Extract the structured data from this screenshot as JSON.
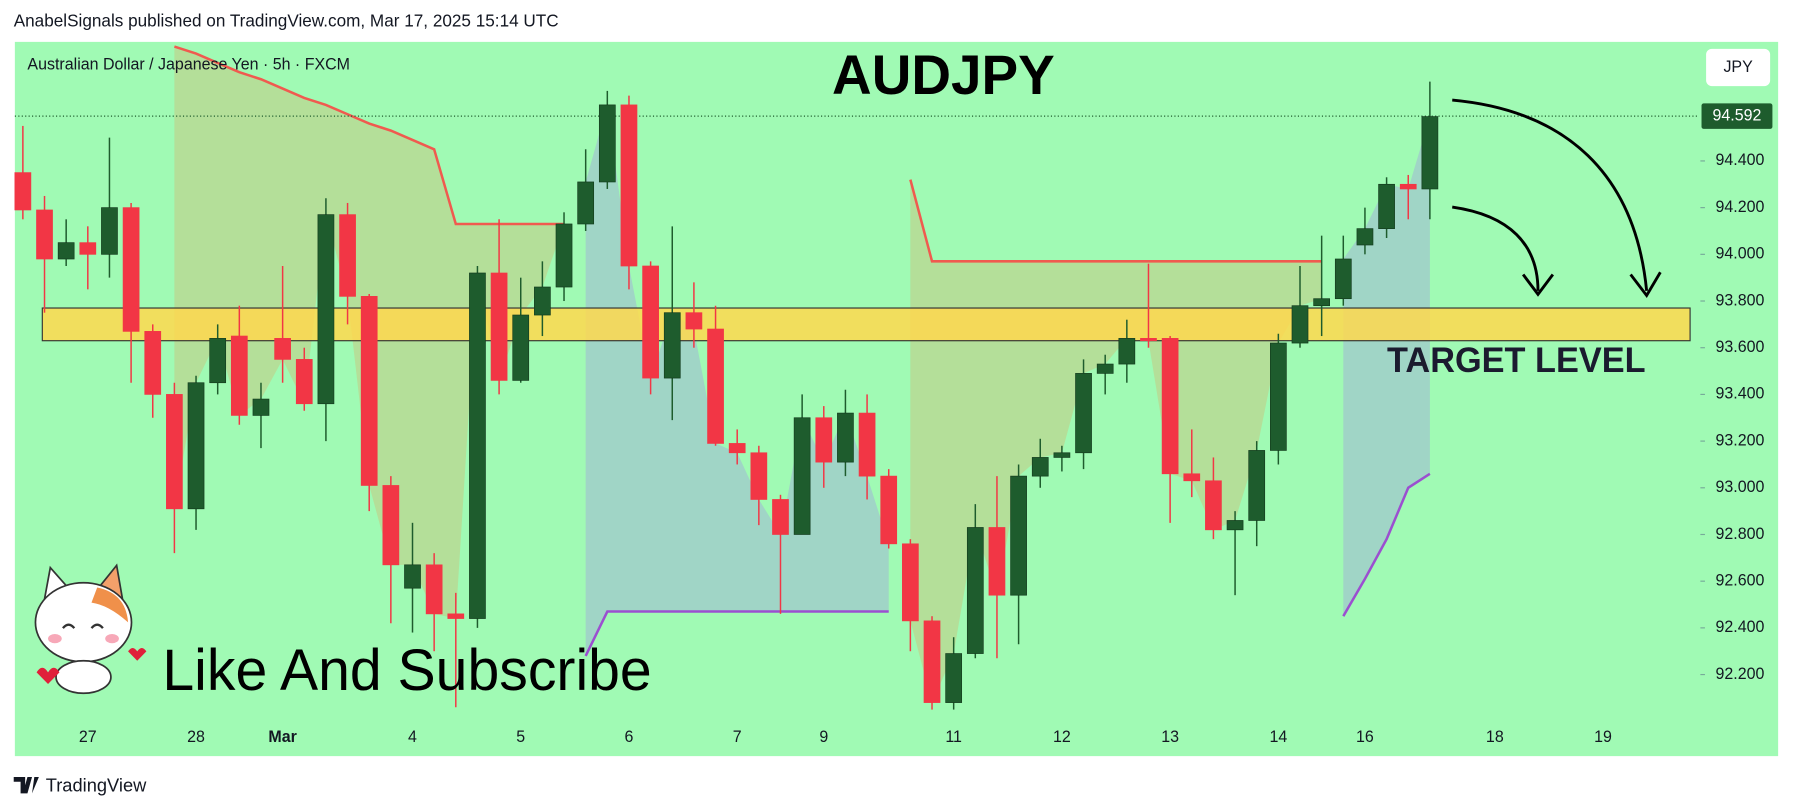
{
  "header": "AnabelSignals published on TradingView.com, Mar 17, 2025 15:14 UTC",
  "footer": "TradingView",
  "chart_data": {
    "type": "candlestick",
    "title": "AUDJPY",
    "subtitle": "Australian Dollar / Japanese Yen · 5h · FXCM",
    "currency": "JPY",
    "annotation": "Like And Subscribe",
    "up_color": "#1e5c2d",
    "down_color": "#f23645",
    "categories": [
      null,
      null,
      null,
      "27",
      null,
      null,
      null,
      null,
      "28",
      null,
      null,
      null,
      "Mar",
      null,
      null,
      null,
      null,
      null,
      "4",
      null,
      null,
      null,
      null,
      "5",
      null,
      null,
      null,
      null,
      "6",
      null,
      null,
      null,
      null,
      "7",
      null,
      null,
      null,
      "9",
      null,
      null,
      null,
      null,
      null,
      "11",
      null,
      null,
      null,
      null,
      "12",
      null,
      null,
      null,
      null,
      "13",
      null,
      null,
      null,
      null,
      "14",
      null,
      null,
      null,
      "16",
      null,
      null,
      null,
      null,
      null,
      "18",
      null,
      null,
      null,
      null,
      "19",
      null,
      null,
      null,
      null
    ],
    "open": [
      94.35,
      94.19,
      93.98,
      94.05,
      94.0,
      94.2,
      93.67,
      93.4,
      92.91,
      93.45,
      93.65,
      93.31,
      93.64,
      93.55,
      93.36,
      94.17,
      93.82,
      93.01,
      92.57,
      92.67,
      92.46,
      92.44,
      93.92,
      93.46,
      93.74,
      93.86,
      94.13,
      94.31,
      94.64,
      93.95,
      93.47,
      93.75,
      93.68,
      93.19,
      93.15,
      92.95,
      92.8,
      93.3,
      93.11,
      93.32,
      93.05,
      92.76,
      92.43,
      92.08,
      92.29,
      92.83,
      92.54,
      93.05,
      93.13,
      93.15,
      93.49,
      93.53,
      93.64,
      93.64,
      93.06,
      93.03,
      92.82,
      92.86,
      93.16,
      93.62,
      93.78,
      93.81,
      94.04,
      94.11,
      94.3,
      94.28,
      null,
      null,
      null,
      null,
      null,
      null,
      null,
      null,
      null,
      null,
      null,
      null
    ],
    "high": [
      94.55,
      94.25,
      94.15,
      94.12,
      94.5,
      94.22,
      93.7,
      93.45,
      93.48,
      93.7,
      93.78,
      93.45,
      93.95,
      93.6,
      94.24,
      94.22,
      93.83,
      93.05,
      92.85,
      92.72,
      92.55,
      93.95,
      94.15,
      93.9,
      93.97,
      94.18,
      94.45,
      94.7,
      94.68,
      93.97,
      94.12,
      93.88,
      93.78,
      93.25,
      93.18,
      92.97,
      93.4,
      93.35,
      93.42,
      93.4,
      93.08,
      92.78,
      92.45,
      92.36,
      92.93,
      93.05,
      93.1,
      93.21,
      93.18,
      93.55,
      93.57,
      93.72,
      93.96,
      93.65,
      93.25,
      93.13,
      92.9,
      93.2,
      93.66,
      93.95,
      94.08,
      94.08,
      94.2,
      94.33,
      94.34,
      94.74,
      null,
      null,
      null,
      null,
      null,
      null,
      null,
      null,
      null,
      null,
      null,
      null
    ],
    "low": [
      94.15,
      93.75,
      93.95,
      93.85,
      93.9,
      93.45,
      93.3,
      92.72,
      92.82,
      93.4,
      93.27,
      93.17,
      93.45,
      93.33,
      93.2,
      93.7,
      92.9,
      92.42,
      92.38,
      92.3,
      92.06,
      92.4,
      93.4,
      93.45,
      93.65,
      93.8,
      94.1,
      94.28,
      93.85,
      93.4,
      93.29,
      93.6,
      93.18,
      93.1,
      92.84,
      92.46,
      92.8,
      93.0,
      93.05,
      92.95,
      92.74,
      92.3,
      92.05,
      92.05,
      92.27,
      92.27,
      92.33,
      93.0,
      93.07,
      93.08,
      93.4,
      93.45,
      93.6,
      92.85,
      92.96,
      92.78,
      92.54,
      92.75,
      93.1,
      93.6,
      93.65,
      93.78,
      94.0,
      94.07,
      94.15,
      94.15,
      null,
      null,
      null,
      null,
      null,
      null,
      null,
      null,
      null,
      null,
      null,
      null
    ],
    "close": [
      94.19,
      93.98,
      94.05,
      94.0,
      94.2,
      93.67,
      93.4,
      92.91,
      93.45,
      93.64,
      93.31,
      93.38,
      93.55,
      93.36,
      94.17,
      93.82,
      93.01,
      92.67,
      92.67,
      92.46,
      92.44,
      93.92,
      93.46,
      93.74,
      93.86,
      94.13,
      94.31,
      94.64,
      93.95,
      93.47,
      93.75,
      93.68,
      93.19,
      93.15,
      92.95,
      92.8,
      93.3,
      93.11,
      93.32,
      93.05,
      92.76,
      92.43,
      92.08,
      92.29,
      92.83,
      92.54,
      93.05,
      93.13,
      93.15,
      93.49,
      93.53,
      93.64,
      93.63,
      93.06,
      93.03,
      92.82,
      92.86,
      93.16,
      93.62,
      93.78,
      93.81,
      93.98,
      94.11,
      94.3,
      94.28,
      94.59,
      null,
      null,
      null,
      null,
      null,
      null,
      null,
      null,
      null,
      null,
      null,
      null
    ],
    "indicators": [
      {
        "color": "#f05a4f",
        "values": [
          null,
          null,
          null,
          null,
          null,
          null,
          null,
          94.89,
          94.86,
          94.82,
          94.78,
          94.75,
          94.71,
          94.67,
          94.64,
          94.6,
          94.56,
          94.53,
          94.49,
          94.45,
          94.13,
          94.13,
          94.13,
          94.13,
          94.13,
          94.13,
          null,
          null,
          null,
          null,
          null,
          null,
          null,
          null,
          null,
          null,
          null,
          null,
          null,
          null,
          null,
          94.32,
          93.97,
          93.97,
          93.97,
          93.97,
          93.97,
          93.97,
          93.97,
          93.97,
          93.97,
          93.97,
          93.97,
          93.97,
          93.97,
          93.97,
          93.97,
          93.97,
          93.97,
          93.97,
          93.97,
          null,
          null,
          null,
          null,
          null,
          null,
          null,
          null,
          null,
          null,
          null,
          null,
          null,
          null,
          null,
          null,
          null
        ]
      },
      {
        "color": "#9b4fd0",
        "values": [
          null,
          null,
          null,
          null,
          null,
          null,
          null,
          null,
          null,
          null,
          null,
          null,
          null,
          null,
          null,
          null,
          null,
          null,
          null,
          null,
          null,
          null,
          null,
          null,
          null,
          null,
          92.28,
          92.47,
          92.47,
          92.47,
          92.47,
          92.47,
          92.47,
          92.47,
          92.47,
          92.47,
          92.47,
          92.47,
          92.47,
          92.47,
          92.47,
          null,
          null,
          null,
          null,
          null,
          null,
          null,
          null,
          null,
          null,
          null,
          null,
          null,
          null,
          null,
          null,
          null,
          null,
          null,
          null,
          92.45,
          92.61,
          92.78,
          93.0,
          93.06,
          null,
          null,
          null,
          null,
          null,
          null,
          null,
          null,
          null,
          null,
          null,
          null
        ]
      }
    ],
    "target_zone": {
      "label": "TARGET LEVEL",
      "low": 93.63,
      "high": 93.77,
      "color": "#ffd84d"
    },
    "last_price": 94.592,
    "ylim": [
      92.04,
      94.91
    ],
    "yticks": [
      {
        "value": 92.2,
        "label": "92.200"
      },
      {
        "value": 92.4,
        "label": "92.400"
      },
      {
        "value": 92.6,
        "label": "92.600"
      },
      {
        "value": 92.8,
        "label": "92.800"
      },
      {
        "value": 93.0,
        "label": "93.000"
      },
      {
        "value": 93.2,
        "label": "93.200"
      },
      {
        "value": 93.4,
        "label": "93.400"
      },
      {
        "value": 93.6,
        "label": "93.600"
      },
      {
        "value": 93.8,
        "label": "93.800"
      },
      {
        "value": 94.0,
        "label": "94.000"
      },
      {
        "value": 94.2,
        "label": "94.200"
      },
      {
        "value": 94.4,
        "label": "94.400"
      }
    ]
  }
}
